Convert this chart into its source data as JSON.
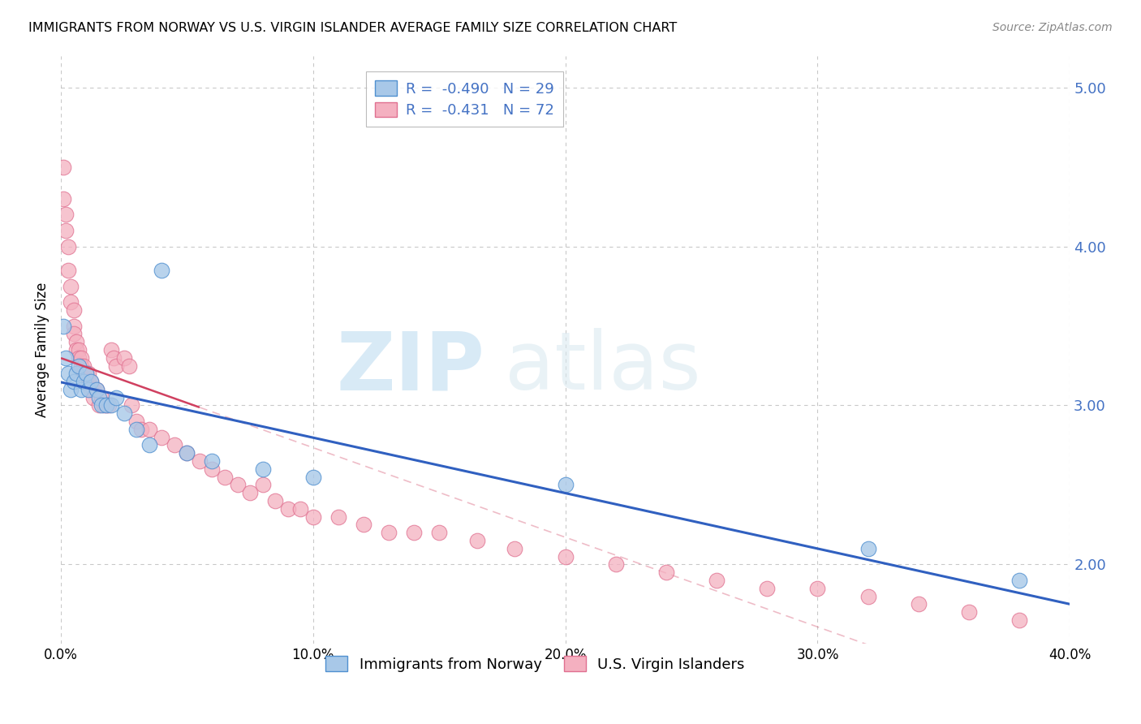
{
  "title": "IMMIGRANTS FROM NORWAY VS U.S. VIRGIN ISLANDER AVERAGE FAMILY SIZE CORRELATION CHART",
  "source": "Source: ZipAtlas.com",
  "ylabel": "Average Family Size",
  "xlim": [
    0.0,
    0.4
  ],
  "ylim": [
    1.5,
    5.2
  ],
  "yticks": [
    2.0,
    3.0,
    4.0,
    5.0
  ],
  "xticks": [
    0.0,
    0.1,
    0.2,
    0.3,
    0.4
  ],
  "legend_R_norway": "-0.490",
  "legend_N_norway": "29",
  "legend_R_virgin": "-0.431",
  "legend_N_virgin": "72",
  "color_norway_fill": "#a8c8e8",
  "color_norway_edge": "#5090d0",
  "color_virgin_fill": "#f4b0c0",
  "color_virgin_edge": "#e07090",
  "color_line_norway": "#3060c0",
  "color_line_virgin": "#d04060",
  "color_text_blue": "#4472c4",
  "norway_scatter_x": [
    0.001,
    0.002,
    0.003,
    0.004,
    0.005,
    0.006,
    0.007,
    0.008,
    0.009,
    0.01,
    0.011,
    0.012,
    0.014,
    0.015,
    0.016,
    0.018,
    0.02,
    0.022,
    0.025,
    0.03,
    0.035,
    0.04,
    0.05,
    0.06,
    0.08,
    0.1,
    0.2,
    0.32,
    0.38
  ],
  "norway_scatter_y": [
    3.5,
    3.3,
    3.2,
    3.1,
    3.15,
    3.2,
    3.25,
    3.1,
    3.15,
    3.2,
    3.1,
    3.15,
    3.1,
    3.05,
    3.0,
    3.0,
    3.0,
    3.05,
    2.95,
    2.85,
    2.75,
    3.85,
    2.7,
    2.65,
    2.6,
    2.55,
    2.5,
    2.1,
    1.9
  ],
  "virgin_scatter_x": [
    0.001,
    0.001,
    0.002,
    0.002,
    0.003,
    0.003,
    0.004,
    0.004,
    0.005,
    0.005,
    0.005,
    0.006,
    0.006,
    0.007,
    0.007,
    0.008,
    0.008,
    0.009,
    0.009,
    0.01,
    0.01,
    0.011,
    0.011,
    0.012,
    0.012,
    0.013,
    0.013,
    0.014,
    0.015,
    0.016,
    0.017,
    0.018,
    0.019,
    0.02,
    0.021,
    0.022,
    0.025,
    0.027,
    0.028,
    0.03,
    0.032,
    0.035,
    0.04,
    0.045,
    0.05,
    0.055,
    0.06,
    0.065,
    0.07,
    0.075,
    0.08,
    0.085,
    0.09,
    0.095,
    0.1,
    0.11,
    0.12,
    0.13,
    0.14,
    0.15,
    0.165,
    0.18,
    0.2,
    0.22,
    0.24,
    0.26,
    0.28,
    0.3,
    0.32,
    0.34,
    0.36,
    0.38
  ],
  "virgin_scatter_y": [
    4.5,
    4.3,
    4.2,
    4.1,
    4.0,
    3.85,
    3.75,
    3.65,
    3.6,
    3.5,
    3.45,
    3.4,
    3.35,
    3.35,
    3.3,
    3.3,
    3.25,
    3.25,
    3.2,
    3.2,
    3.15,
    3.2,
    3.15,
    3.15,
    3.1,
    3.1,
    3.05,
    3.1,
    3.0,
    3.05,
    3.0,
    3.0,
    3.0,
    3.35,
    3.3,
    3.25,
    3.3,
    3.25,
    3.0,
    2.9,
    2.85,
    2.85,
    2.8,
    2.75,
    2.7,
    2.65,
    2.6,
    2.55,
    2.5,
    2.45,
    2.5,
    2.4,
    2.35,
    2.35,
    2.3,
    2.3,
    2.25,
    2.2,
    2.2,
    2.2,
    2.15,
    2.1,
    2.05,
    2.0,
    1.95,
    1.9,
    1.85,
    1.85,
    1.8,
    1.75,
    1.7,
    1.65
  ]
}
